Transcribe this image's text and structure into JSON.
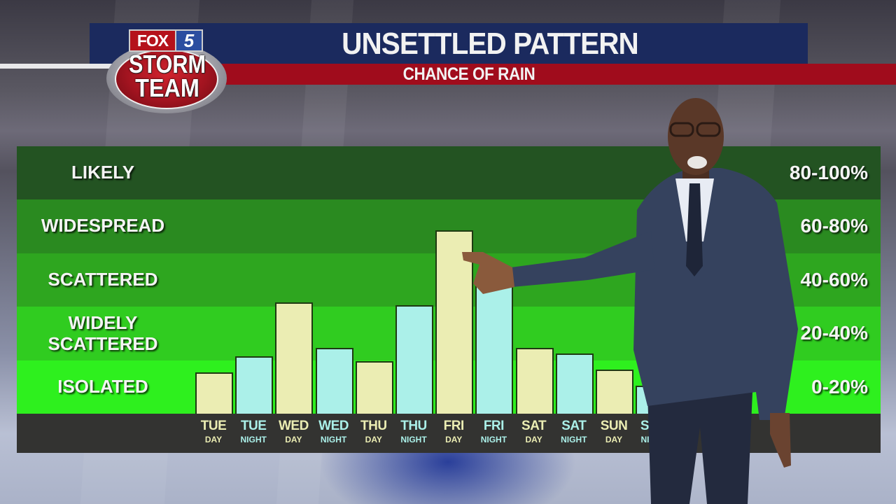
{
  "header": {
    "title": "UNSETTLED PATTERN",
    "subtitle": "CHANCE OF RAIN",
    "colors": {
      "title_bar": "#1b2a5e",
      "subtitle_bar": "#a00c1c"
    }
  },
  "logo": {
    "station": "FOX",
    "channel": "5",
    "line1": "STORM",
    "line2": "TEAM"
  },
  "chart_data": {
    "type": "bar",
    "title": "UNSETTLED PATTERN",
    "subtitle": "CHANCE OF RAIN",
    "xlabel": "",
    "ylabel": "Chance of rain (%)",
    "ylim": [
      0,
      100
    ],
    "grid": false,
    "legend": null,
    "categories": [
      "TUE DAY",
      "TUE NIGHT",
      "WED DAY",
      "WED NIGHT",
      "THU DAY",
      "THU NIGHT",
      "FRI DAY",
      "FRI NIGHT",
      "SAT DAY",
      "SAT NIGHT",
      "SUN DAY",
      "SUN NIGHT"
    ],
    "values": [
      15,
      21,
      41,
      24,
      19,
      40,
      68,
      50,
      24,
      22,
      16,
      10
    ],
    "bar_colors": {
      "day": "#ebedb3",
      "night": "#abf0e9"
    },
    "bands": [
      {
        "label": "LIKELY",
        "range": "80-100%",
        "min": 80,
        "max": 100,
        "color": "#235322"
      },
      {
        "label": "WIDESPREAD",
        "range": "60-80%",
        "min": 60,
        "max": 80,
        "color": "#2a8a20"
      },
      {
        "label": "SCATTERED",
        "range": "40-60%",
        "min": 40,
        "max": 60,
        "color": "#2ea61f"
      },
      {
        "label": "WIDELY SCATTERED",
        "range": "20-40%",
        "min": 20,
        "max": 40,
        "color": "#30cc20"
      },
      {
        "label": "ISOLATED",
        "range": "0-20%",
        "min": 0,
        "max": 20,
        "color": "#2ef01e"
      }
    ]
  },
  "days": [
    {
      "name": "TUE",
      "part": "DAY"
    },
    {
      "name": "TUE",
      "part": "NIGHT"
    },
    {
      "name": "WED",
      "part": "DAY"
    },
    {
      "name": "WED",
      "part": "NIGHT"
    },
    {
      "name": "THU",
      "part": "DAY"
    },
    {
      "name": "THU",
      "part": "NIGHT"
    },
    {
      "name": "FRI",
      "part": "DAY"
    },
    {
      "name": "FRI",
      "part": "NIGHT"
    },
    {
      "name": "SAT",
      "part": "DAY"
    },
    {
      "name": "SAT",
      "part": "NIGHT"
    },
    {
      "name": "SUN",
      "part": "DAY"
    },
    {
      "name": "SUN",
      "part": "NIGHT"
    }
  ]
}
